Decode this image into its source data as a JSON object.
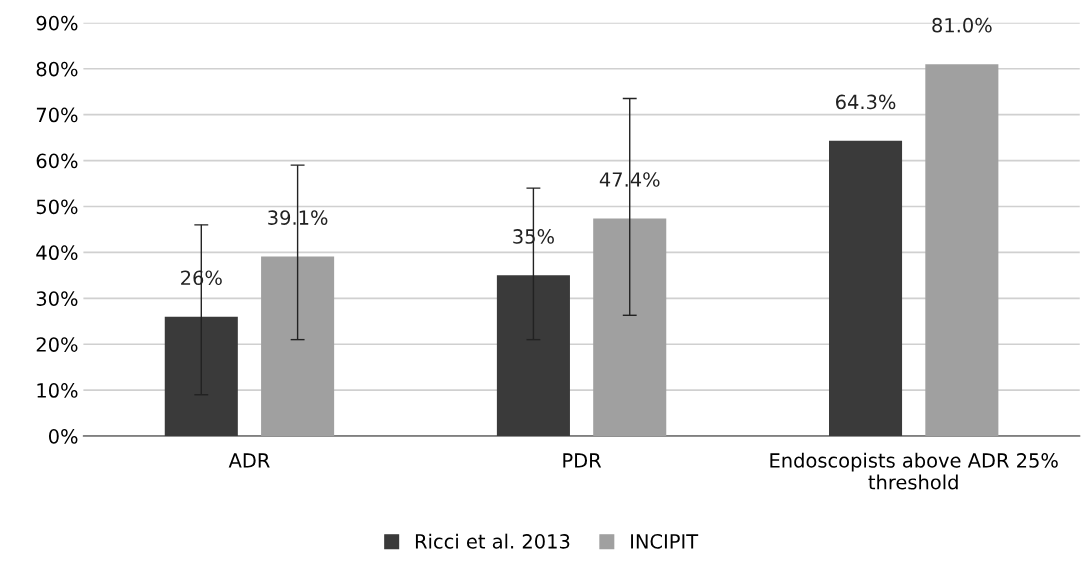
{
  "chart_data": {
    "type": "bar",
    "categories": [
      "ADR",
      "PDR",
      "Endoscopists above ADR 25%\nthreshold"
    ],
    "series": [
      {
        "name": "Ricci et al. 2013",
        "color": "#3a3a3a",
        "values": [
          26,
          35,
          64.3
        ],
        "value_labels": [
          "26%",
          "35%",
          "64.3%"
        ],
        "errors": [
          [
            9,
            46
          ],
          [
            21,
            54
          ],
          null
        ]
      },
      {
        "name": "INCIPIT",
        "color": "#a0a0a0",
        "values": [
          39.1,
          47.4,
          81.0
        ],
        "value_labels": [
          "39.1%",
          "47.4%",
          "81.0%"
        ],
        "errors": [
          [
            21,
            59
          ],
          [
            26.3,
            73.5
          ],
          null
        ]
      }
    ],
    "ylim": [
      0,
      90
    ],
    "yticks": [
      {
        "value": 0,
        "label": "0%"
      },
      {
        "value": 10,
        "label": "10%"
      },
      {
        "value": 20,
        "label": "20%"
      },
      {
        "value": 30,
        "label": "30%"
      },
      {
        "value": 40,
        "label": "40%"
      },
      {
        "value": 50,
        "label": "50%"
      },
      {
        "value": 60,
        "label": "60%"
      },
      {
        "value": 70,
        "label": "70%"
      },
      {
        "value": 80,
        "label": "80%"
      },
      {
        "value": 90,
        "label": "90%"
      }
    ],
    "grid": "y",
    "legend": "bottom"
  }
}
